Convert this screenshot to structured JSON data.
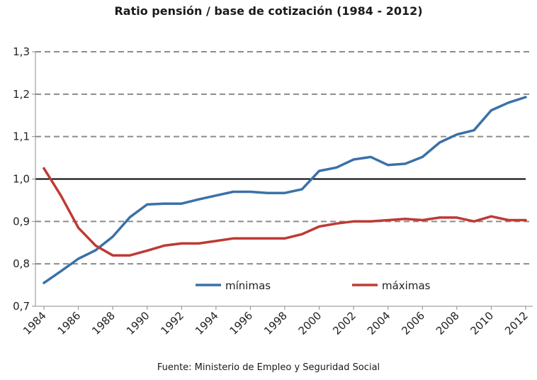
{
  "chart_data": {
    "type": "line",
    "title": "Ratio pensión / base de cotización (1984 - 2012)",
    "source": "Fuente: Ministerio de Empleo y Seguridad Social",
    "x": [
      1984,
      1985,
      1986,
      1987,
      1988,
      1989,
      1990,
      1991,
      1992,
      1993,
      1994,
      1995,
      1996,
      1997,
      1998,
      1999,
      2000,
      2001,
      2002,
      2003,
      2004,
      2005,
      2006,
      2007,
      2008,
      2009,
      2010,
      2011,
      2012
    ],
    "series": [
      {
        "name": "mínimas",
        "color": "#3A71A8",
        "values": [
          0.755,
          0.783,
          0.812,
          0.832,
          0.864,
          0.91,
          0.94,
          0.942,
          0.942,
          0.952,
          0.961,
          0.97,
          0.97,
          0.967,
          0.967,
          0.976,
          1.019,
          1.027,
          1.046,
          1.052,
          1.033,
          1.036,
          1.052,
          1.086,
          1.105,
          1.115,
          1.162,
          1.18,
          1.193
        ]
      },
      {
        "name": "máximas",
        "color": "#BE3A34",
        "values": [
          1.025,
          0.96,
          0.885,
          0.843,
          0.82,
          0.82,
          0.831,
          0.843,
          0.848,
          0.848,
          0.854,
          0.86,
          0.86,
          0.86,
          0.86,
          0.87,
          0.888,
          0.895,
          0.9,
          0.9,
          0.903,
          0.906,
          0.903,
          0.909,
          0.909,
          0.9,
          0.912,
          0.903,
          0.903
        ]
      }
    ],
    "ylim": [
      0.7,
      1.3
    ],
    "yticks": [
      "0,7",
      "0,8",
      "0,9",
      "1,0",
      "1,1",
      "1,2",
      "1,3"
    ],
    "xticks": [
      "1984",
      "1986",
      "1988",
      "1990",
      "1992",
      "1994",
      "1996",
      "1998",
      "2000",
      "2002",
      "2004",
      "2006",
      "2008",
      "2010",
      "2012"
    ],
    "reference_line": 1.0,
    "grid": "horizontal dashed",
    "legend_position": "bottom-center, inside plot"
  }
}
